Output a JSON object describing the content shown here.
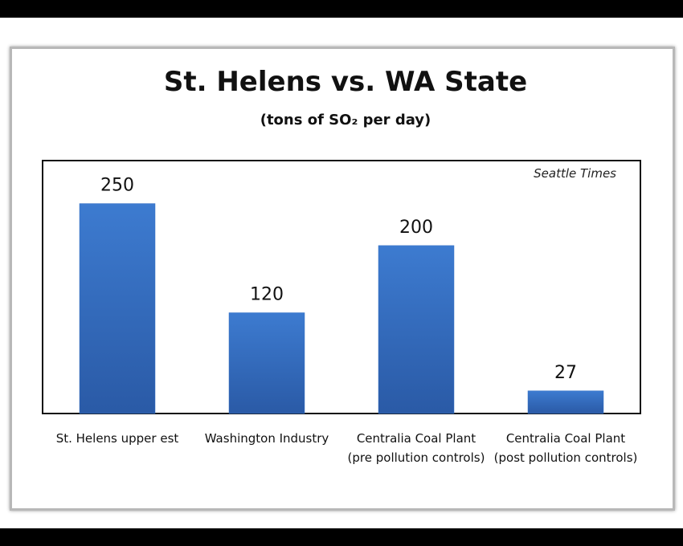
{
  "chart_data": {
    "type": "bar",
    "title": "St. Helens vs. WA State",
    "subtitle": "(tons of SO₂ per day)",
    "annotation": "Seattle Times",
    "categories": [
      "St. Helens upper est",
      "Washington Industry",
      "Centralia Coal Plant (pre pollution controls)",
      "Centralia Coal Plant (post pollution controls)"
    ],
    "values": [
      250,
      120,
      200,
      27
    ],
    "color": "#3470c4"
  }
}
